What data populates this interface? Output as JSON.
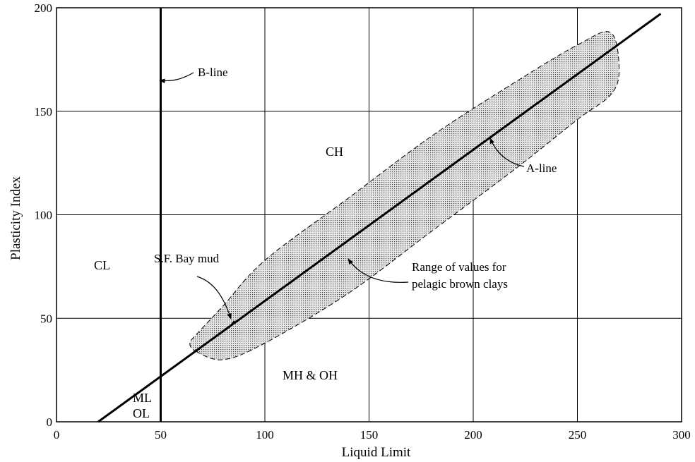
{
  "chart_data": {
    "type": "line",
    "xlabel": "Liquid Limit",
    "ylabel": "Plasticity Index",
    "xlim": [
      0,
      300
    ],
    "ylim": [
      0,
      200
    ],
    "x_ticks": [
      "0",
      "50",
      "100",
      "150",
      "200",
      "250",
      "300"
    ],
    "y_ticks": [
      "0",
      "50",
      "100",
      "150",
      "200"
    ],
    "grid": true,
    "series": [
      {
        "name": "A-line",
        "x": [
          20,
          290
        ],
        "y": [
          0,
          197.1
        ]
      },
      {
        "name": "B-line",
        "x": [
          50,
          50
        ],
        "y": [
          0,
          200
        ]
      }
    ],
    "regions": [
      {
        "name": "Range of values for pelagic brown clays",
        "style": "dotted-shaded-dashed-outline",
        "x": [
          67,
          80,
          100,
          140,
          180,
          220,
          250,
          266,
          270,
          266,
          250,
          220,
          180,
          140,
          100,
          80,
          67,
          64
        ],
        "y": [
          34,
          30,
          38,
          62,
          92,
          122,
          146,
          158,
          170,
          188,
          182,
          164,
          138,
          108,
          78,
          56,
          42,
          38
        ]
      }
    ],
    "zone_labels": [
      "CH",
      "CL",
      "MH & OH",
      "ML",
      "OL"
    ],
    "annotations": [
      "B-line",
      "A-line",
      "S.F. Bay mud",
      "Range of values for",
      "pelagic brown clays"
    ],
    "markers": [
      {
        "label": "S.F. Bay mud",
        "x": 84,
        "y": 47
      }
    ]
  }
}
